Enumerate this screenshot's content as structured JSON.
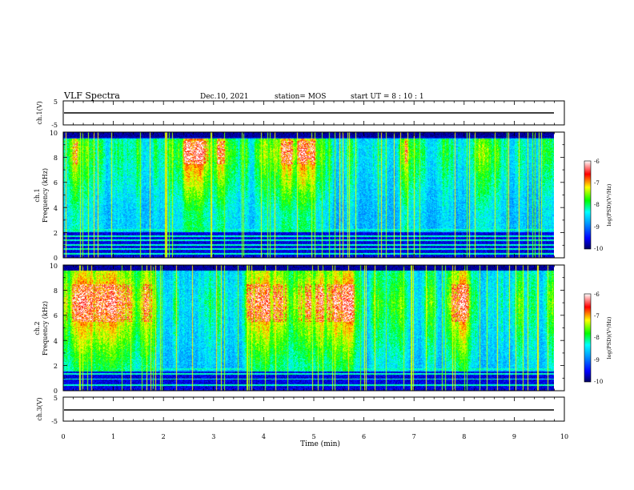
{
  "header": {
    "title": "VLF Spectra",
    "date": "Dec.10, 2021",
    "station": "station= MOS",
    "start": "start  UT  =   8 : 10 : 1"
  },
  "chart_data": [
    {
      "type": "line",
      "panel": "ch1-waveform",
      "ylabel": "ch.1(V)",
      "ylim": [
        -5,
        5
      ],
      "yticks": [
        "5",
        "-5"
      ],
      "xlim": [
        0,
        10
      ],
      "series": [
        {
          "values_note": "flat",
          "level": 0
        }
      ]
    },
    {
      "type": "heatmap",
      "panel": "ch1-spectrogram",
      "ylabel": "ch.1\nFrequency (kHz)",
      "ylim": [
        0,
        10
      ],
      "yticks": [
        "0",
        "2",
        "4",
        "6",
        "8",
        "10"
      ],
      "xlim": [
        0,
        9.82
      ],
      "colorbar": {
        "label": "log(PSD)(V²/Hz)",
        "ticks": [
          "-6",
          "-7",
          "-8",
          "-9",
          "-10"
        ],
        "range": [
          -10,
          -6
        ]
      },
      "intense_band_khz": [
        7.5,
        9.3
      ],
      "hiss_band_khz": [
        2,
        9.5
      ],
      "low_lines_khz": [
        0.3,
        0.7,
        1.0,
        1.4,
        1.7,
        2.2
      ]
    },
    {
      "type": "heatmap",
      "panel": "ch2-spectrogram",
      "ylabel": "ch.2\nFrequency (kHz)",
      "ylim": [
        0,
        10
      ],
      "yticks": [
        "0",
        "2",
        "4",
        "6",
        "8",
        "10"
      ],
      "xlim": [
        0,
        9.82
      ],
      "colorbar": {
        "label": "log(PSD)(V²/Hz)",
        "ticks": [
          "-6",
          "-7",
          "-8",
          "-9",
          "-10"
        ],
        "range": [
          -10,
          -6
        ]
      },
      "intense_band_khz": [
        5.5,
        8.5
      ],
      "hiss_band_khz": [
        1.5,
        9.8
      ],
      "low_lines_khz": [
        0.4,
        0.9,
        1.3,
        1.7
      ]
    },
    {
      "type": "line",
      "panel": "ch3-waveform",
      "ylabel": "ch.3(V)",
      "ylim": [
        -5,
        5
      ],
      "yticks": [
        "5",
        "-5"
      ],
      "xlim": [
        0,
        10
      ],
      "series": [
        {
          "values_note": "flat",
          "level": 0
        }
      ]
    }
  ],
  "xaxis": {
    "label": "Time  (min)",
    "ticks": [
      "0",
      "1",
      "2",
      "3",
      "4",
      "5",
      "6",
      "7",
      "8",
      "9",
      "10"
    ]
  },
  "colors": {
    "colormap": [
      "#000080",
      "#0000ff",
      "#00ffff",
      "#00ff00",
      "#ffff00",
      "#ff8000",
      "#ff0000",
      "#ffffff"
    ]
  }
}
